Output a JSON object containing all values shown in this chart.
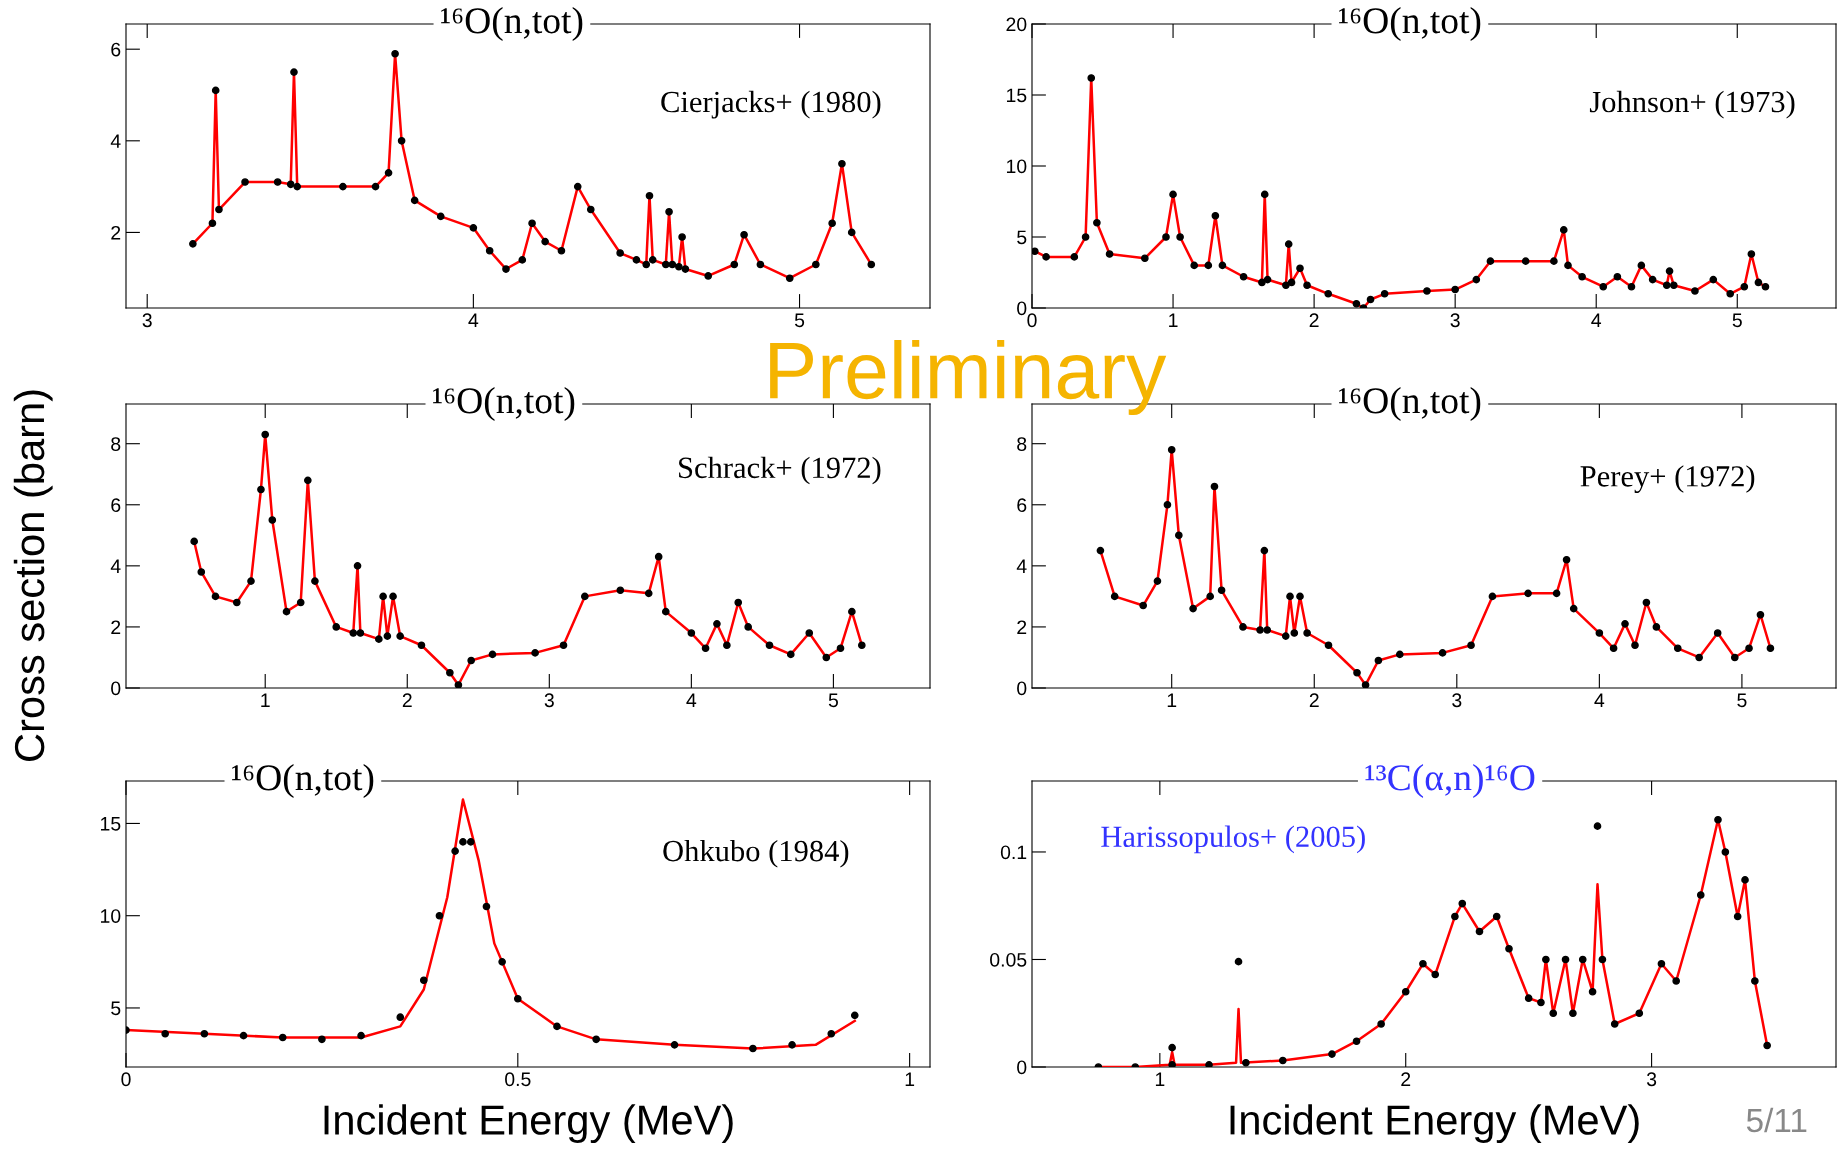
{
  "chart_data": [
    {
      "type": "scatter",
      "title": "¹⁶O(n,tot)",
      "annotations": [
        "Cierjacks+ (1980)"
      ],
      "xlim": [
        2.935,
        5.4
      ],
      "xticks": [
        3,
        4,
        5
      ],
      "ylim": [
        0.35,
        6.55
      ],
      "yticks": [
        2,
        4,
        6
      ],
      "grid": false,
      "legend": false,
      "series": [
        {
          "marker": "circle",
          "color": "#000000",
          "x": [
            3.14,
            3.2,
            3.21,
            3.22,
            3.3,
            3.4,
            3.44,
            3.45,
            3.46,
            3.6,
            3.7,
            3.74,
            3.76,
            3.78,
            3.82,
            3.9,
            4.0,
            4.05,
            4.1,
            4.15,
            4.18,
            4.22,
            4.27,
            4.32,
            4.36,
            4.45,
            4.5,
            4.53,
            4.54,
            4.55,
            4.59,
            4.6,
            4.61,
            4.63,
            4.64,
            4.65,
            4.72,
            4.8,
            4.83,
            4.88,
            4.97,
            5.05,
            5.1,
            5.13,
            5.16,
            5.22
          ],
          "values": [
            1.75,
            2.2,
            5.1,
            2.5,
            3.1,
            3.1,
            3.05,
            5.5,
            3.0,
            3.0,
            3.0,
            3.3,
            5.9,
            4.0,
            2.7,
            2.35,
            2.1,
            1.6,
            1.2,
            1.4,
            2.2,
            1.8,
            1.6,
            3.0,
            2.5,
            1.55,
            1.4,
            1.3,
            2.8,
            1.4,
            1.3,
            2.45,
            1.3,
            1.25,
            1.9,
            1.2,
            1.05,
            1.3,
            1.95,
            1.3,
            1.0,
            1.3,
            2.2,
            3.5,
            2.0,
            1.3
          ]
        },
        {
          "type": "line",
          "color": "#ff0000",
          "x": [
            3.14,
            3.2,
            3.21,
            3.22,
            3.3,
            3.4,
            3.44,
            3.45,
            3.46,
            3.6,
            3.7,
            3.74,
            3.76,
            3.78,
            3.82,
            3.9,
            4.0,
            4.05,
            4.1,
            4.15,
            4.18,
            4.22,
            4.27,
            4.32,
            4.36,
            4.45,
            4.5,
            4.53,
            4.54,
            4.55,
            4.59,
            4.6,
            4.61,
            4.63,
            4.64,
            4.65,
            4.72,
            4.8,
            4.83,
            4.88,
            4.97,
            5.05,
            5.1,
            5.13,
            5.16,
            5.22
          ],
          "values": [
            1.75,
            2.2,
            5.1,
            2.5,
            3.1,
            3.1,
            3.05,
            5.5,
            3.0,
            3.0,
            3.0,
            3.3,
            5.9,
            4.0,
            2.7,
            2.35,
            2.1,
            1.6,
            1.2,
            1.4,
            2.2,
            1.8,
            1.6,
            3.0,
            2.5,
            1.55,
            1.4,
            1.3,
            2.8,
            1.4,
            1.3,
            2.45,
            1.3,
            1.25,
            1.9,
            1.2,
            1.05,
            1.3,
            1.95,
            1.3,
            1.0,
            1.3,
            2.2,
            3.5,
            2.0,
            1.3
          ]
        }
      ]
    },
    {
      "type": "scatter",
      "title": "¹⁶O(n,tot)",
      "annotations": [
        "Johnson+ (1973)"
      ],
      "xlim": [
        0,
        5.7
      ],
      "xticks": [
        0,
        1,
        2,
        3,
        4,
        5
      ],
      "ylim": [
        0,
        20
      ],
      "yticks": [
        0,
        5,
        10,
        15,
        20
      ],
      "grid": false,
      "legend": false,
      "series": [
        {
          "marker": "circle",
          "color": "#000000",
          "x": [
            0.02,
            0.1,
            0.3,
            0.38,
            0.42,
            0.46,
            0.55,
            0.8,
            0.95,
            1.0,
            1.05,
            1.15,
            1.25,
            1.3,
            1.35,
            1.5,
            1.63,
            1.65,
            1.67,
            1.8,
            1.82,
            1.84,
            1.9,
            1.95,
            2.1,
            2.3,
            2.35,
            2.4,
            2.5,
            2.8,
            3.0,
            3.15,
            3.25,
            3.5,
            3.7,
            3.77,
            3.8,
            3.9,
            4.05,
            4.15,
            4.25,
            4.32,
            4.4,
            4.5,
            4.52,
            4.55,
            4.7,
            4.83,
            4.95,
            5.05,
            5.1,
            5.15,
            5.2
          ],
          "values": [
            4.0,
            3.6,
            3.6,
            5,
            16.2,
            6,
            3.8,
            3.5,
            5,
            8.0,
            5,
            3.0,
            3.0,
            6.5,
            3.0,
            2.2,
            1.8,
            8.0,
            2.0,
            1.6,
            4.5,
            1.8,
            2.8,
            1.6,
            1.0,
            0.3,
            0.0,
            0.6,
            1.0,
            1.2,
            1.3,
            2.0,
            3.3,
            3.3,
            3.3,
            5.5,
            3.0,
            2.2,
            1.5,
            2.2,
            1.5,
            3.0,
            2.0,
            1.6,
            2.6,
            1.6,
            1.2,
            2.0,
            1.0,
            1.5,
            3.8,
            1.8,
            1.5
          ]
        },
        {
          "type": "line",
          "color": "#ff0000",
          "x": [
            0.02,
            0.1,
            0.3,
            0.38,
            0.42,
            0.46,
            0.55,
            0.8,
            0.95,
            1.0,
            1.05,
            1.15,
            1.25,
            1.3,
            1.35,
            1.5,
            1.63,
            1.65,
            1.67,
            1.8,
            1.82,
            1.84,
            1.9,
            1.95,
            2.1,
            2.3,
            2.35,
            2.4,
            2.5,
            2.8,
            3.0,
            3.15,
            3.25,
            3.5,
            3.7,
            3.77,
            3.8,
            3.9,
            4.05,
            4.15,
            4.25,
            4.32,
            4.4,
            4.5,
            4.52,
            4.55,
            4.7,
            4.83,
            4.95,
            5.05,
            5.1,
            5.15,
            5.2
          ],
          "values": [
            4.0,
            3.6,
            3.6,
            5,
            16.2,
            6,
            3.8,
            3.5,
            5,
            8.0,
            5,
            3.0,
            3.0,
            6.5,
            3.0,
            2.2,
            1.8,
            8.0,
            2.0,
            1.6,
            4.5,
            1.8,
            2.8,
            1.6,
            1.0,
            0.3,
            0.0,
            0.6,
            1.0,
            1.2,
            1.3,
            2.0,
            3.3,
            3.3,
            3.3,
            5.5,
            3.0,
            2.2,
            1.5,
            2.2,
            1.5,
            3.0,
            2.0,
            1.6,
            2.6,
            1.6,
            1.2,
            2.0,
            1.0,
            1.5,
            3.8,
            1.8,
            1.5
          ]
        }
      ]
    },
    {
      "type": "scatter",
      "title": "¹⁶O(n,tot)",
      "ylabel": "Cross section (barn)",
      "annotations": [
        "Schrack+ (1972)",
        "Preliminary"
      ],
      "xlim": [
        0.02,
        5.68
      ],
      "xticks": [
        1,
        2,
        3,
        4,
        5
      ],
      "ylim": [
        0,
        9.3
      ],
      "yticks": [
        0,
        2,
        4,
        6,
        8
      ],
      "grid": false,
      "legend": false,
      "series": [
        {
          "marker": "circle",
          "color": "#000000",
          "x": [
            0.5,
            0.55,
            0.65,
            0.8,
            0.9,
            0.97,
            1.0,
            1.05,
            1.15,
            1.25,
            1.3,
            1.35,
            1.5,
            1.62,
            1.65,
            1.67,
            1.8,
            1.83,
            1.86,
            1.9,
            1.95,
            2.1,
            2.3,
            2.36,
            2.45,
            2.6,
            2.9,
            3.1,
            3.25,
            3.5,
            3.7,
            3.77,
            3.82,
            4.0,
            4.1,
            4.18,
            4.25,
            4.33,
            4.4,
            4.55,
            4.7,
            4.83,
            4.95,
            5.05,
            5.13,
            5.2
          ],
          "values": [
            4.8,
            3.8,
            3.0,
            2.8,
            3.5,
            6.5,
            8.3,
            5.5,
            2.5,
            2.8,
            6.8,
            3.5,
            2.0,
            1.8,
            4.0,
            1.8,
            1.6,
            3.0,
            1.7,
            3.0,
            1.7,
            1.4,
            0.5,
            0.1,
            0.9,
            1.1,
            1.15,
            1.4,
            3.0,
            3.2,
            3.1,
            4.3,
            2.5,
            1.8,
            1.3,
            2.1,
            1.4,
            2.8,
            2.0,
            1.4,
            1.1,
            1.8,
            1.0,
            1.3,
            2.5,
            1.4
          ]
        },
        {
          "type": "line",
          "color": "#ff0000",
          "x": [
            0.5,
            0.55,
            0.65,
            0.8,
            0.9,
            0.97,
            1.0,
            1.05,
            1.15,
            1.25,
            1.3,
            1.35,
            1.5,
            1.62,
            1.65,
            1.67,
            1.8,
            1.83,
            1.86,
            1.9,
            1.95,
            2.1,
            2.3,
            2.36,
            2.45,
            2.6,
            2.9,
            3.1,
            3.25,
            3.5,
            3.7,
            3.77,
            3.82,
            4.0,
            4.1,
            4.18,
            4.25,
            4.33,
            4.4,
            4.55,
            4.7,
            4.83,
            4.95,
            5.05,
            5.13,
            5.2
          ],
          "values": [
            4.8,
            3.8,
            3.0,
            2.8,
            3.5,
            6.5,
            8.3,
            5.5,
            2.5,
            2.8,
            6.8,
            3.5,
            2.0,
            1.8,
            4.0,
            1.8,
            1.6,
            3.0,
            1.7,
            3.0,
            1.7,
            1.4,
            0.5,
            0.1,
            0.9,
            1.1,
            1.15,
            1.4,
            3.0,
            3.2,
            3.1,
            4.3,
            2.5,
            1.8,
            1.3,
            2.1,
            1.4,
            2.8,
            2.0,
            1.4,
            1.1,
            1.8,
            1.0,
            1.3,
            2.5,
            1.4
          ]
        }
      ]
    },
    {
      "type": "scatter",
      "title": "¹⁶O(n,tot)",
      "annotations": [
        "Perey+ (1972)"
      ],
      "xlim": [
        0.02,
        5.66
      ],
      "xticks": [
        1,
        2,
        3,
        4,
        5
      ],
      "ylim": [
        0,
        9.3
      ],
      "yticks": [
        0,
        2,
        4,
        6,
        8
      ],
      "grid": false,
      "legend": false,
      "series": [
        {
          "marker": "circle",
          "color": "#000000",
          "x": [
            0.5,
            0.6,
            0.8,
            0.9,
            0.97,
            1.0,
            1.05,
            1.15,
            1.27,
            1.3,
            1.35,
            1.5,
            1.62,
            1.65,
            1.67,
            1.8,
            1.83,
            1.86,
            1.9,
            1.95,
            2.1,
            2.3,
            2.36,
            2.45,
            2.6,
            2.9,
            3.1,
            3.25,
            3.5,
            3.7,
            3.77,
            3.82,
            4.0,
            4.1,
            4.18,
            4.25,
            4.33,
            4.4,
            4.55,
            4.7,
            4.83,
            4.95,
            5.05,
            5.13,
            5.2
          ],
          "values": [
            4.5,
            3.0,
            2.7,
            3.5,
            6,
            7.8,
            5,
            2.6,
            3.0,
            6.6,
            3.2,
            2.0,
            1.9,
            4.5,
            1.9,
            1.7,
            3.0,
            1.8,
            3.0,
            1.8,
            1.4,
            0.5,
            0.1,
            0.9,
            1.1,
            1.15,
            1.4,
            3.0,
            3.1,
            3.1,
            4.2,
            2.6,
            1.8,
            1.3,
            2.1,
            1.4,
            2.8,
            2.0,
            1.3,
            1.0,
            1.8,
            1.0,
            1.3,
            2.4,
            1.3
          ]
        },
        {
          "type": "line",
          "color": "#ff0000",
          "x": [
            0.5,
            0.6,
            0.8,
            0.9,
            0.97,
            1.0,
            1.05,
            1.15,
            1.27,
            1.3,
            1.35,
            1.5,
            1.62,
            1.65,
            1.67,
            1.8,
            1.83,
            1.86,
            1.9,
            1.95,
            2.1,
            2.3,
            2.36,
            2.45,
            2.6,
            2.9,
            3.1,
            3.25,
            3.5,
            3.7,
            3.77,
            3.82,
            4.0,
            4.1,
            4.18,
            4.25,
            4.33,
            4.4,
            4.55,
            4.7,
            4.83,
            4.95,
            5.05,
            5.13,
            5.2
          ],
          "values": [
            4.5,
            3.0,
            2.7,
            3.5,
            6,
            7.8,
            5,
            2.6,
            3.0,
            6.6,
            3.2,
            2.0,
            1.9,
            4.5,
            1.9,
            1.7,
            3.0,
            1.8,
            3.0,
            1.8,
            1.4,
            0.5,
            0.1,
            0.9,
            1.1,
            1.15,
            1.4,
            3.0,
            3.1,
            3.1,
            4.2,
            2.6,
            1.8,
            1.3,
            2.1,
            1.4,
            2.8,
            2.0,
            1.3,
            1.0,
            1.8,
            1.0,
            1.3,
            2.4,
            1.3
          ]
        }
      ]
    },
    {
      "type": "scatter",
      "title": "¹⁶O(n,tot)",
      "xlabel": "Incident Energy (MeV)",
      "annotations": [
        "Ohkubo (1984)"
      ],
      "xlim": [
        0,
        1.026
      ],
      "xticks": [
        0,
        0.5,
        1
      ],
      "ylim": [
        1.8,
        17.3
      ],
      "yticks": [
        5,
        10,
        15
      ],
      "grid": false,
      "legend": false,
      "series": [
        {
          "marker": "circle",
          "color": "#000000",
          "x": [
            0.0,
            0.05,
            0.1,
            0.15,
            0.2,
            0.25,
            0.3,
            0.35,
            0.38,
            0.4,
            0.42,
            0.43,
            0.44,
            0.46,
            0.48,
            0.5,
            0.55,
            0.6,
            0.7,
            0.8,
            0.85,
            0.9,
            0.93
          ],
          "values": [
            3.8,
            3.6,
            3.6,
            3.5,
            3.4,
            3.3,
            3.5,
            4.5,
            6.5,
            10,
            13.5,
            14.0,
            14.0,
            10.5,
            7.5,
            5.5,
            4,
            3.3,
            3.0,
            2.8,
            3.0,
            3.6,
            4.6
          ]
        },
        {
          "type": "line",
          "color": "#ff0000",
          "x": [
            0,
            0.1,
            0.2,
            0.3,
            0.35,
            0.38,
            0.41,
            0.43,
            0.45,
            0.47,
            0.5,
            0.55,
            0.6,
            0.7,
            0.8,
            0.88,
            0.93
          ],
          "values": [
            3.8,
            3.6,
            3.4,
            3.4,
            4.0,
            6,
            11,
            16.3,
            13,
            8.5,
            5.5,
            4.0,
            3.3,
            3.0,
            2.8,
            3.0,
            4.3
          ]
        }
      ]
    },
    {
      "type": "scatter",
      "title": "¹³C(α,n)¹⁶O",
      "xlabel": "Incident Energy (MeV)",
      "annotations": [
        "Harissopulos+ (2005)",
        "5/11"
      ],
      "xlim": [
        0.48,
        3.75
      ],
      "xticks": [
        1,
        2,
        3
      ],
      "ylim": [
        0,
        0.133
      ],
      "yticks": [
        0,
        0.05,
        0.1
      ],
      "grid": false,
      "legend": false,
      "series": [
        {
          "marker": "circle",
          "color": "#000000",
          "x": [
            0.75,
            0.9,
            1.05,
            1.05,
            1.2,
            1.32,
            1.35,
            1.5,
            1.7,
            1.8,
            1.9,
            2.0,
            2.07,
            2.12,
            2.2,
            2.23,
            2.3,
            2.37,
            2.42,
            2.5,
            2.55,
            2.57,
            2.6,
            2.65,
            2.68,
            2.72,
            2.76,
            2.78,
            2.8,
            2.85,
            2.95,
            3.04,
            3.1,
            3.2,
            3.27,
            3.3,
            3.35,
            3.38,
            3.42,
            3.47
          ],
          "values": [
            0.0,
            0.0,
            0.001,
            0.009,
            0.001,
            0.049,
            0.002,
            0.003,
            0.006,
            0.012,
            0.02,
            0.035,
            0.048,
            0.043,
            0.07,
            0.076,
            0.063,
            0.07,
            0.055,
            0.032,
            0.03,
            0.05,
            0.025,
            0.05,
            0.025,
            0.05,
            0.035,
            0.112,
            0.05,
            0.02,
            0.025,
            0.048,
            0.04,
            0.08,
            0.115,
            0.1,
            0.07,
            0.087,
            0.04,
            0.01
          ]
        },
        {
          "type": "line",
          "color": "#ff0000",
          "x": [
            0.75,
            0.9,
            1.04,
            1.05,
            1.06,
            1.2,
            1.31,
            1.32,
            1.33,
            1.5,
            1.7,
            1.8,
            1.9,
            2.0,
            2.07,
            2.12,
            2.2,
            2.23,
            2.3,
            2.37,
            2.42,
            2.5,
            2.55,
            2.57,
            2.6,
            2.65,
            2.68,
            2.72,
            2.76,
            2.78,
            2.8,
            2.85,
            2.95,
            3.04,
            3.1,
            3.2,
            3.27,
            3.3,
            3.35,
            3.38,
            3.42,
            3.47
          ],
          "values": [
            0.0,
            0.0,
            0.001,
            0.007,
            0.001,
            0.001,
            0.002,
            0.027,
            0.002,
            0.003,
            0.006,
            0.012,
            0.02,
            0.035,
            0.048,
            0.043,
            0.07,
            0.076,
            0.063,
            0.07,
            0.055,
            0.032,
            0.03,
            0.05,
            0.025,
            0.05,
            0.025,
            0.05,
            0.035,
            0.085,
            0.05,
            0.02,
            0.025,
            0.048,
            0.04,
            0.08,
            0.115,
            0.1,
            0.07,
            0.087,
            0.04,
            0.01
          ]
        }
      ]
    }
  ]
}
